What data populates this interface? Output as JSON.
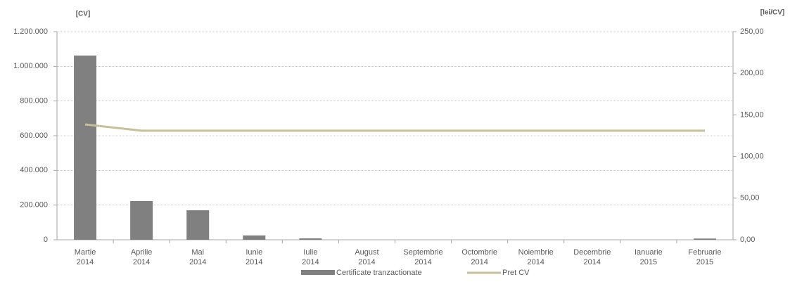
{
  "chart_data": {
    "type": "bar",
    "y_axis_label": "[CV]",
    "y2_axis_label": "[lei/CV]",
    "categories": [
      "Martie 2014",
      "Aprilie 2014",
      "Mai 2014",
      "Iunie 2014",
      "Iulie 2014",
      "August 2014",
      "Septembrie 2014",
      "Octombrie 2014",
      "Noiembrie 2014",
      "Decembrie 2014",
      "Ianuarie 2015",
      "Februarie 2015"
    ],
    "series": [
      {
        "name": "Certificate tranzactionate",
        "type": "bar",
        "color": "#808080",
        "values": [
          1062000,
          223000,
          170000,
          25000,
          8000,
          0,
          0,
          0,
          0,
          0,
          0,
          7000
        ]
      },
      {
        "name": "Pret CV",
        "type": "line",
        "axis": "y2",
        "color": "#c8bf9a",
        "values": [
          138.5,
          131,
          131,
          131,
          131,
          131,
          131,
          131,
          131,
          131,
          131,
          131
        ]
      }
    ],
    "ylim": [
      0,
      1200000
    ],
    "yticks": [
      0,
      {
        "value": 200000,
        "label": "200.000"
      },
      {
        "value": 400000,
        "label": "400.000"
      },
      {
        "value": 600000,
        "label": "600.000"
      },
      {
        "value": 800000,
        "label": "800.000"
      },
      {
        "value": 1000000,
        "label": "1.000.000"
      },
      {
        "value": 1200000,
        "label": "1.200.000"
      }
    ],
    "y2lim": [
      0,
      250
    ],
    "y2ticks": [
      {
        "value": 0,
        "label": "0,00"
      },
      {
        "value": 50,
        "label": "50,00"
      },
      {
        "value": 100,
        "label": "100,00"
      },
      {
        "value": 150,
        "label": "150,00"
      },
      {
        "value": 200,
        "label": "200,00"
      },
      {
        "value": 250,
        "label": "250,00"
      }
    ],
    "grid": true,
    "legend": "bottom"
  }
}
